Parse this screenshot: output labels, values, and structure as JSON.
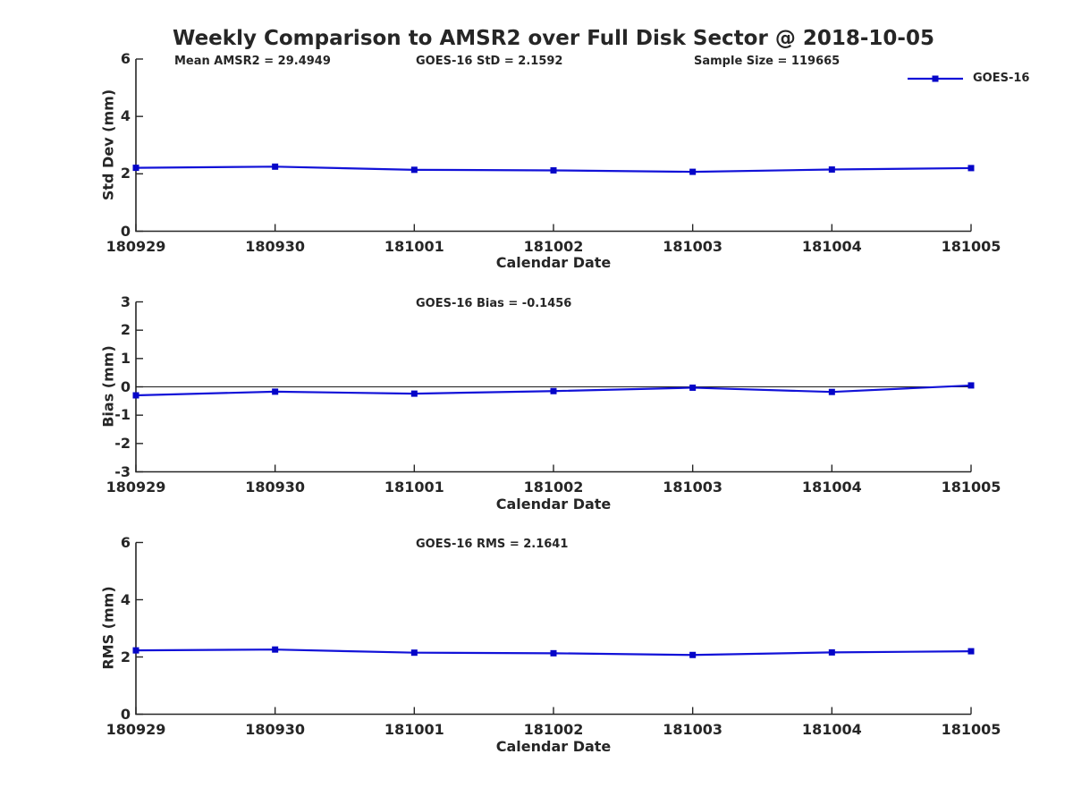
{
  "title": "Weekly Comparison to AMSR2 over Full Disk Sector @ 2018-10-05",
  "legend": {
    "label": "GOES-16"
  },
  "colors": {
    "line": "#1212d8",
    "marker": "#0505c8",
    "axis": "#262626",
    "text": "#262626",
    "zero_line": "#1a1a1a"
  },
  "chart_data": [
    {
      "type": "line",
      "name": "std-dev",
      "annotations": [
        "Mean AMSR2 = 29.4949",
        "GOES-16 StD = 2.1592",
        "Sample Size = 119665"
      ],
      "categories": [
        "180929",
        "180930",
        "181001",
        "181002",
        "181003",
        "181004",
        "181005"
      ],
      "series": [
        {
          "name": "GOES-16",
          "values": [
            2.21,
            2.25,
            2.14,
            2.12,
            2.07,
            2.15,
            2.2
          ]
        }
      ],
      "xlabel": "Calendar Date",
      "ylabel": "Std Dev (mm)",
      "ylim": [
        0,
        6
      ],
      "yticks": [
        0,
        2,
        4,
        6
      ],
      "zero_line": false,
      "grid": false,
      "legend_position": "top-right"
    },
    {
      "type": "line",
      "name": "bias",
      "annotations": [
        "GOES-16 Bias  = -0.1456"
      ],
      "categories": [
        "180929",
        "180930",
        "181001",
        "181002",
        "181003",
        "181004",
        "181005"
      ],
      "series": [
        {
          "name": "GOES-16",
          "values": [
            -0.3,
            -0.17,
            -0.24,
            -0.15,
            -0.03,
            -0.18,
            0.05
          ]
        }
      ],
      "xlabel": "Calendar Date",
      "ylabel": "Bias (mm)",
      "ylim": [
        -3,
        3
      ],
      "yticks": [
        -3,
        -2,
        -1,
        0,
        1,
        2,
        3
      ],
      "zero_line": true,
      "grid": false
    },
    {
      "type": "line",
      "name": "rms",
      "annotations": [
        "GOES-16 RMS = 2.1641"
      ],
      "categories": [
        "180929",
        "180930",
        "181001",
        "181002",
        "181003",
        "181004",
        "181005"
      ],
      "series": [
        {
          "name": "GOES-16",
          "values": [
            2.23,
            2.26,
            2.15,
            2.13,
            2.07,
            2.16,
            2.2
          ]
        }
      ],
      "xlabel": "Calendar Date",
      "ylabel": "RMS (mm)",
      "ylim": [
        0,
        6
      ],
      "yticks": [
        0,
        2,
        4,
        6
      ],
      "zero_line": false,
      "grid": false
    }
  ]
}
